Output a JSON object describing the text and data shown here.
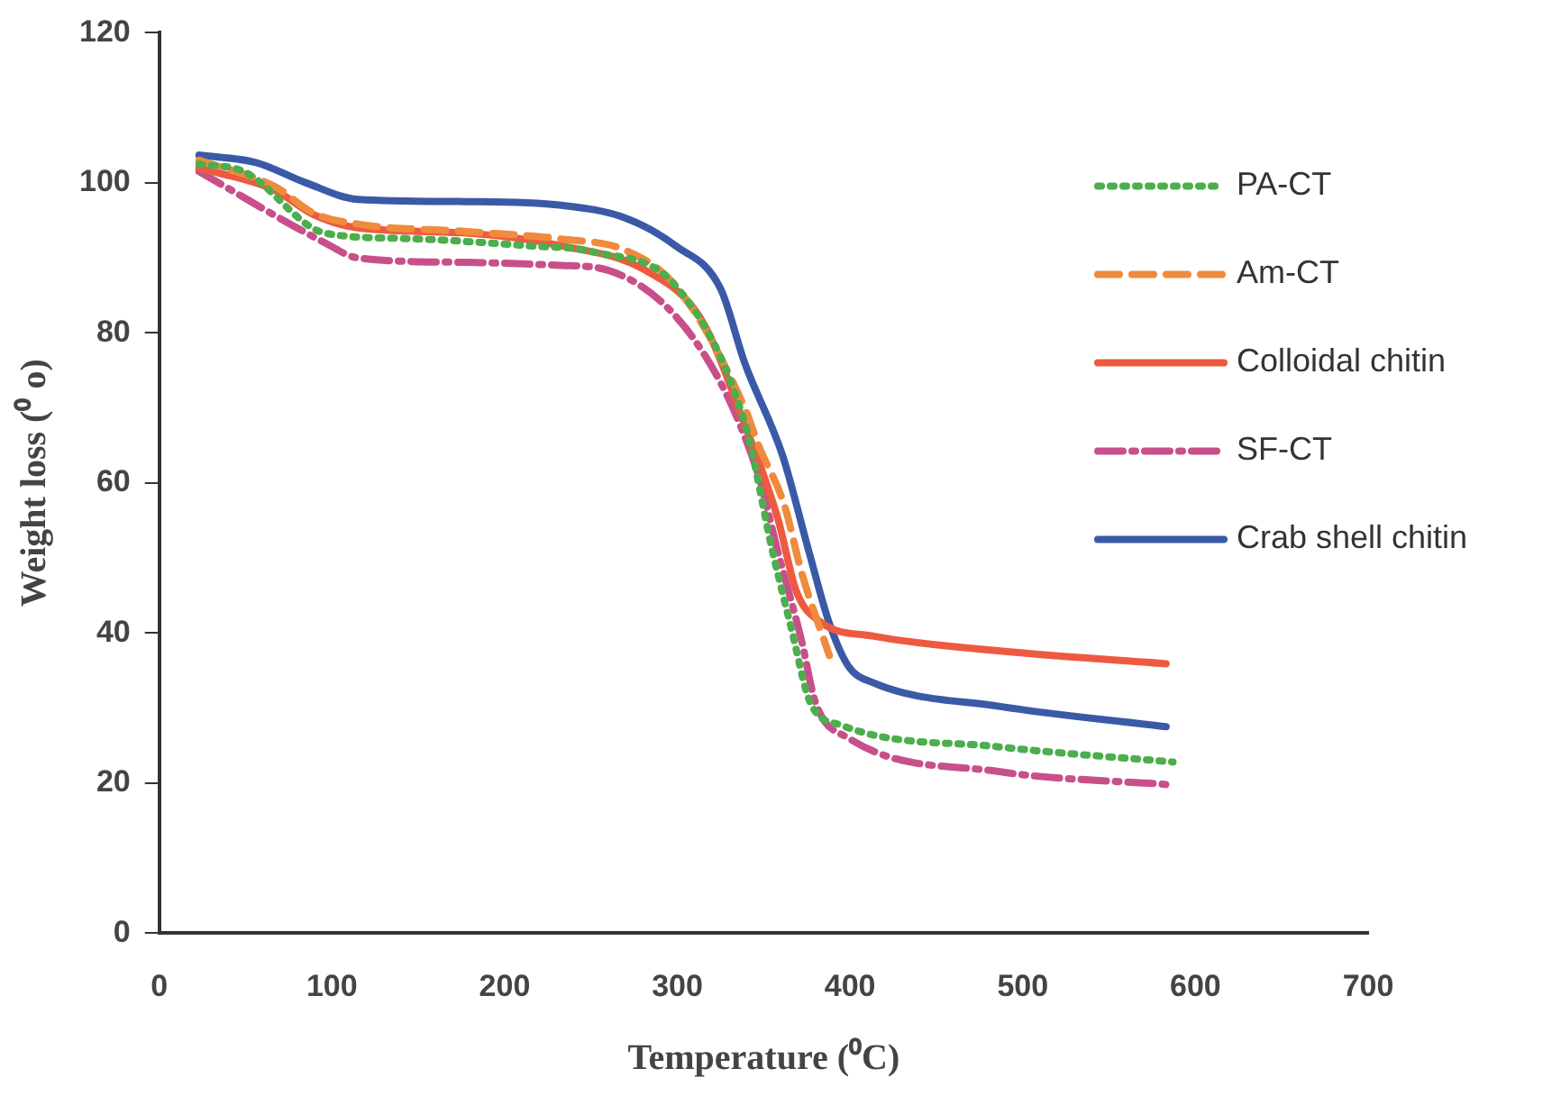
{
  "chart_data": {
    "type": "line",
    "xlabel": "Temperature (⁰C)",
    "ylabel": "Weight loss (⁰ o)",
    "xlim": [
      0,
      700
    ],
    "xticks": [
      0,
      100,
      200,
      300,
      400,
      500,
      600,
      700
    ],
    "ylim": [
      0,
      120
    ],
    "yticks": [
      0,
      20,
      40,
      60,
      80,
      100,
      120
    ],
    "grid": false,
    "legend": "right",
    "marker": "none",
    "series": [
      {
        "name": "PA-CT",
        "color": "#4cae4c",
        "line_style": "dotted",
        "x": [
          23,
          49,
          96,
          140,
          214,
          251,
          300,
          339,
          355,
          366,
          377,
          395,
          487,
          587
        ],
        "values": [
          102.5,
          101.5,
          93.3,
          92.6,
          91.6,
          90.8,
          86,
          68,
          51,
          40.6,
          30.7,
          27.7,
          24.8,
          22.8
        ]
      },
      {
        "name": "Am-CT",
        "color": "#f08a3c",
        "line_style": "dashed",
        "x": [
          23,
          67,
          89,
          115,
          178,
          233,
          270,
          300,
          339,
          347,
          362,
          372,
          388
        ],
        "values": [
          103,
          99.5,
          96,
          94.5,
          93.5,
          92.5,
          91,
          86,
          70,
          65,
          57,
          48,
          37
        ]
      },
      {
        "name": "Colloidal chitin",
        "color": "#ee5a3f",
        "line_style": "solid",
        "x": [
          23,
          67,
          89,
          115,
          178,
          233,
          281,
          314,
          339,
          358,
          369,
          384,
          413,
          487,
          583
        ],
        "values": [
          102,
          99,
          95.8,
          94,
          93.3,
          91.6,
          88.4,
          81.7,
          67.8,
          55.4,
          45.5,
          41.3,
          39.6,
          37.6,
          35.9
        ]
      },
      {
        "name": "SF-CT",
        "color": "#c8508a",
        "line_style": "dashdot",
        "x": [
          23,
          96,
          115,
          178,
          233,
          259,
          314,
          347,
          358,
          372,
          380,
          399,
          487,
          583
        ],
        "values": [
          101.5,
          92,
          90,
          89.4,
          89,
          88.4,
          77.7,
          61,
          51,
          38.9,
          30.7,
          26,
          21.5,
          19.8
        ]
      },
      {
        "name": "Crab shell chitin",
        "color": "#3a5aa8",
        "line_style": "solid",
        "x": [
          23,
          56,
          85,
          115,
          178,
          233,
          270,
          299,
          325,
          339,
          361,
          376,
          388,
          399,
          413,
          487,
          583
        ],
        "values": [
          103.7,
          102.7,
          100,
          97.8,
          97.5,
          97,
          95.3,
          91.6,
          85.9,
          76,
          63.6,
          51,
          41.3,
          35.6,
          33.4,
          30.2,
          27.5
        ]
      }
    ]
  }
}
